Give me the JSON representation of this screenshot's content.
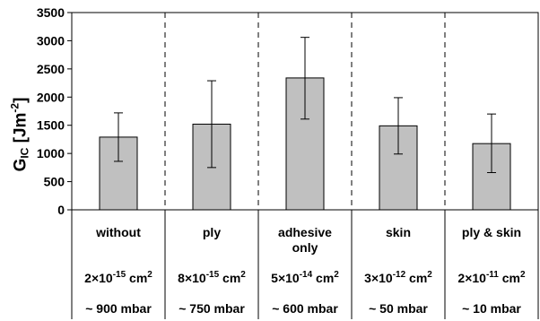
{
  "chart_data": {
    "type": "bar",
    "title": "",
    "ylabel": "G_IC [Jm^-2]",
    "ylabel_parts": {
      "main": "G",
      "sub": "IC",
      "unit_open": " [Jm",
      "sup": "-2",
      "unit_close": "]"
    },
    "ylim": [
      0,
      3500
    ],
    "yticks": [
      "0",
      "500",
      "1000",
      "1500",
      "2000",
      "2500",
      "3000",
      "3500"
    ],
    "grid": false,
    "categories": [
      "without",
      "ply",
      "adhesive only",
      "skin",
      "ply & skin"
    ],
    "category_lines": [
      [
        "without"
      ],
      [
        "ply"
      ],
      [
        "adhesive",
        "only"
      ],
      [
        "skin"
      ],
      [
        "ply & skin"
      ]
    ],
    "values": [
      1290,
      1520,
      2340,
      1490,
      1175
    ],
    "error_low": [
      860,
      750,
      1610,
      990,
      660
    ],
    "error_high": [
      1720,
      2290,
      3060,
      1990,
      1700
    ],
    "permeability": [
      {
        "mantissa": "2×10",
        "exp": "-15",
        "unit": " cm",
        "unit_exp": "2"
      },
      {
        "mantissa": "8×10",
        "exp": "-15",
        "unit": " cm",
        "unit_exp": "2"
      },
      {
        "mantissa": "5×10",
        "exp": "-14",
        "unit": " cm",
        "unit_exp": "2"
      },
      {
        "mantissa": "3×10",
        "exp": "-12",
        "unit": " cm",
        "unit_exp": "2"
      },
      {
        "mantissa": "2×10",
        "exp": "-11",
        "unit": " cm",
        "unit_exp": "2"
      }
    ],
    "pressure": [
      "~ 900 mbar",
      "~ 750 mbar",
      "~ 600 mbar",
      "~ 50 mbar",
      "~ 10 mbar"
    ],
    "colors": {
      "bar_fill": "#c0c0c0",
      "bar_stroke": "#000000"
    }
  }
}
